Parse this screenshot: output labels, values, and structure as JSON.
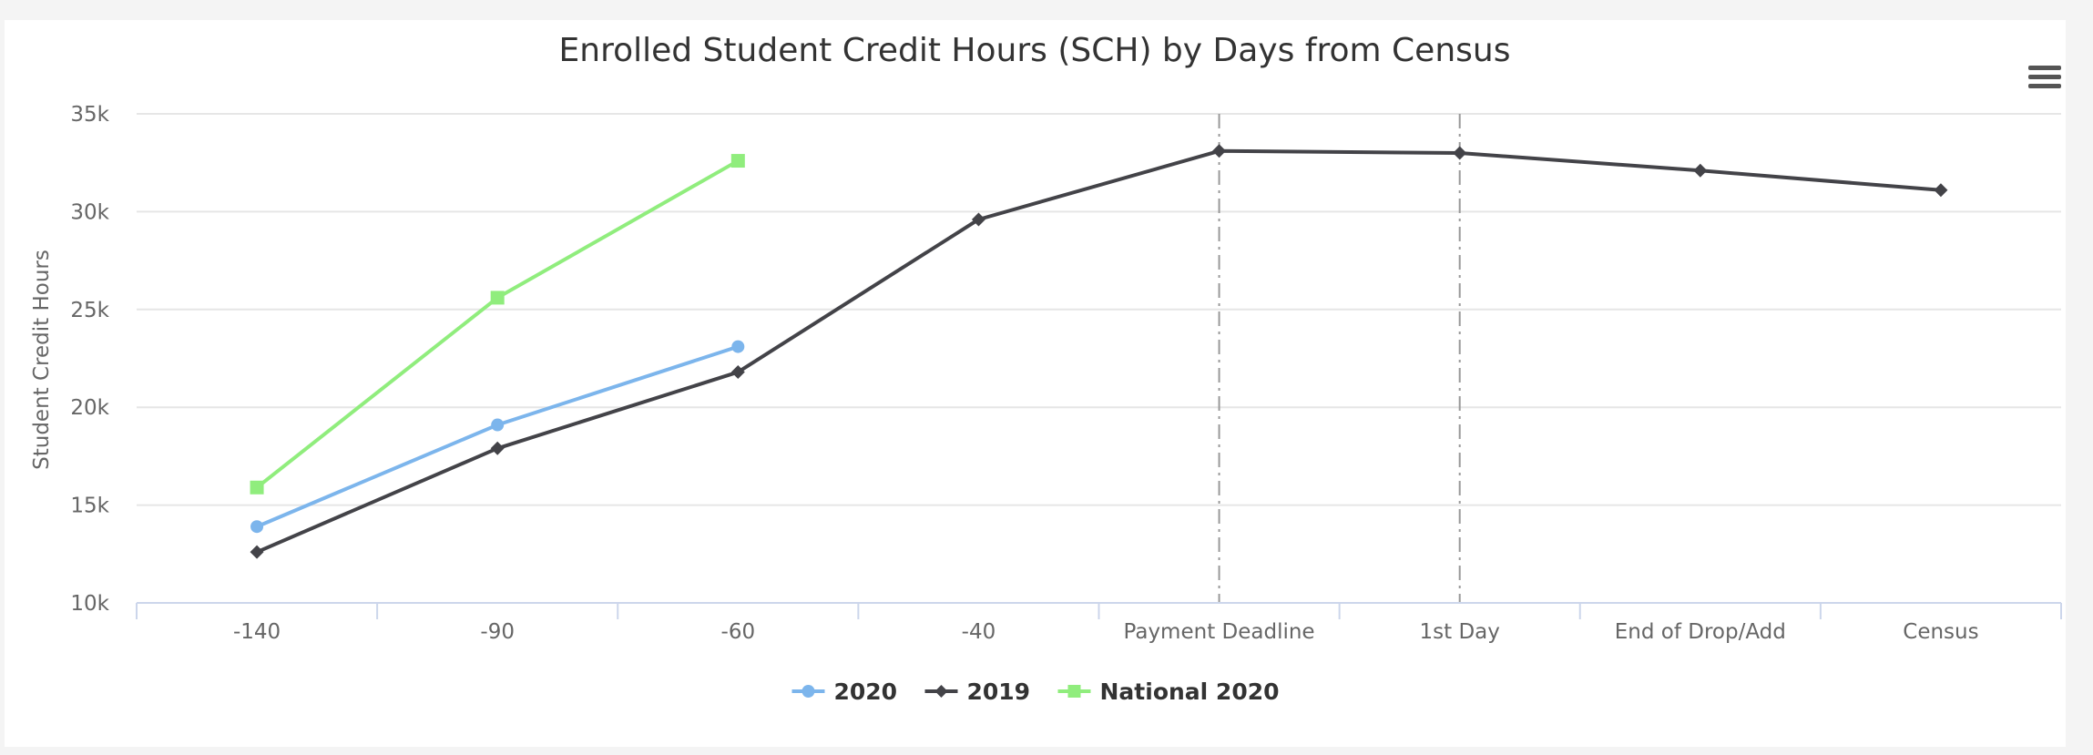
{
  "menu": {
    "icon": "hamburger-menu-icon"
  },
  "chart_data": {
    "type": "line",
    "title": "Enrolled Student Credit Hours (SCH) by Days from Census",
    "xlabel": "",
    "ylabel": "Student Credit Hours",
    "categories": [
      "-140",
      "-90",
      "-60",
      "-40",
      "Payment Deadline",
      "1st Day",
      "End of Drop/Add",
      "Census"
    ],
    "ylim": [
      10000,
      35000
    ],
    "yticks": [
      10000,
      15000,
      20000,
      25000,
      30000,
      35000
    ],
    "ytick_labels": [
      "10k",
      "15k",
      "20k",
      "25k",
      "30k",
      "35k"
    ],
    "grid": true,
    "legend_position": "bottom-center",
    "plot_lines": [
      {
        "category": "Payment Deadline",
        "style": "dash-dot",
        "color": "#999999"
      },
      {
        "category": "1st Day",
        "style": "dash-dot",
        "color": "#999999"
      }
    ],
    "series": [
      {
        "name": "2020",
        "color": "#7cb5ec",
        "marker": "circle",
        "values": [
          13900,
          19100,
          23100,
          null,
          null,
          null,
          null,
          null
        ]
      },
      {
        "name": "2019",
        "color": "#434348",
        "marker": "diamond",
        "values": [
          12600,
          17900,
          21800,
          29600,
          33100,
          33000,
          32100,
          31100
        ]
      },
      {
        "name": "National 2020",
        "color": "#90ed7d",
        "marker": "square",
        "values": [
          15900,
          25600,
          32600,
          null,
          null,
          null,
          null,
          null
        ]
      }
    ]
  }
}
